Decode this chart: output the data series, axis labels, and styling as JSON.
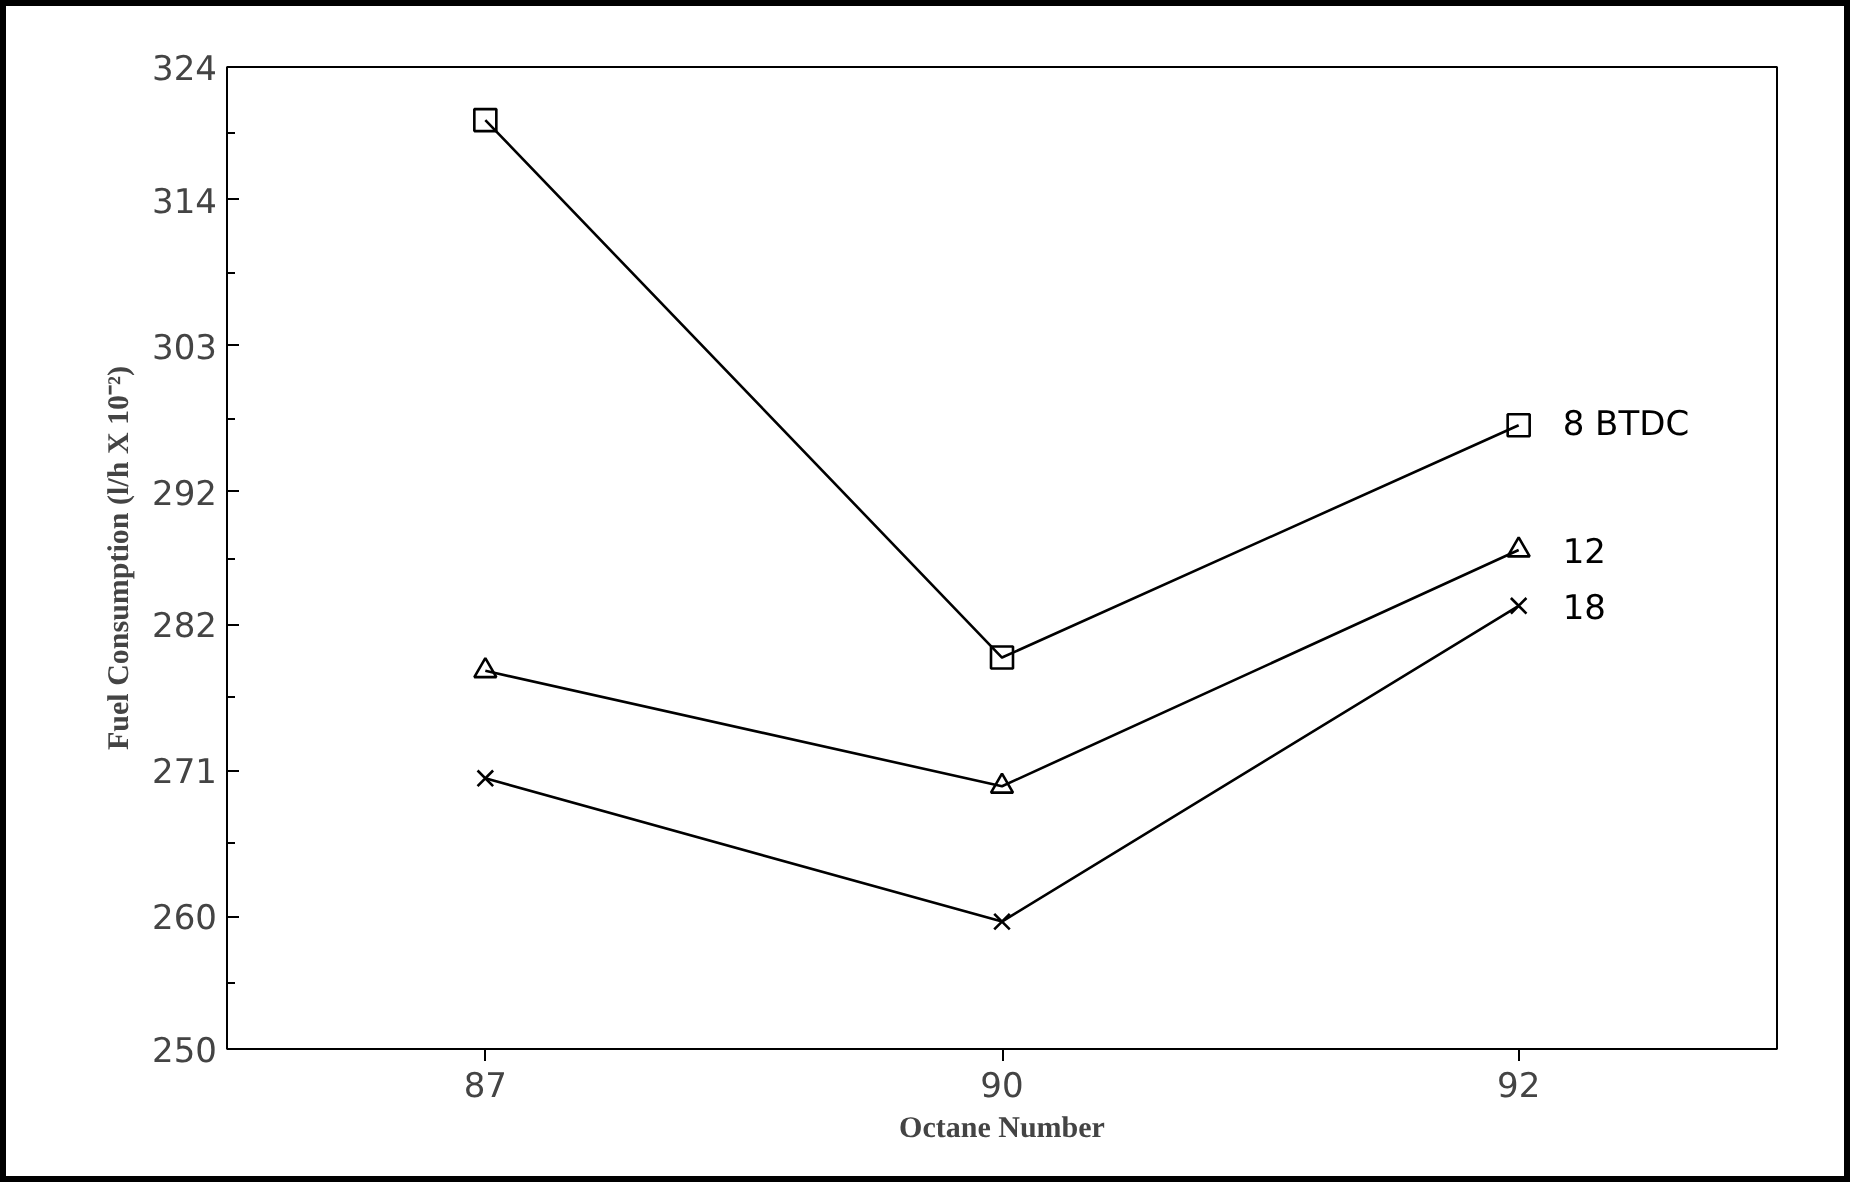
{
  "chart_data": {
    "type": "line",
    "xlabel": "Octane Number",
    "ylabel": "Fuel Consumption (l/h X 10⁻²)",
    "categories": [
      "87",
      "90",
      "92"
    ],
    "series": [
      {
        "name": "8 BTDC",
        "color": "#000000",
        "marker": "square",
        "values": [
          320.0,
          279.5,
          297.0
        ]
      },
      {
        "name": "12",
        "color": "#000000",
        "marker": "triangle",
        "values": [
          278.5,
          269.8,
          287.6
        ]
      },
      {
        "name": "18",
        "color": "#000000",
        "marker": "cross",
        "values": [
          270.4,
          259.6,
          283.4
        ]
      }
    ],
    "ylim": [
      250,
      324
    ],
    "yticks": [
      250,
      260,
      271,
      282,
      292,
      303,
      314,
      324
    ],
    "grid": false,
    "legend": false,
    "line_style": "solid"
  }
}
